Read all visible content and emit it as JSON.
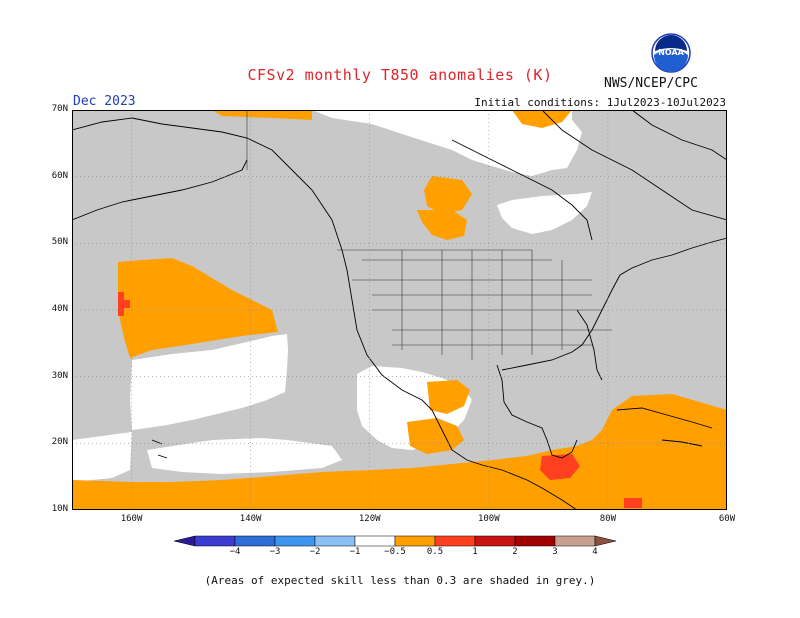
{
  "title": "CFSv2 monthly T850 anomalies (K)",
  "agency": "NWS/NCEP/CPC",
  "month": "Dec 2023",
  "initial_conditions": "Initial conditions: 1Jul2023-10Jul2023",
  "footnote": "(Areas of expected skill less than 0.3 are shaded in grey.)",
  "logo_text": "NOAA",
  "map": {
    "lat_labels": [
      "70N",
      "60N",
      "50N",
      "40N",
      "30N",
      "20N",
      "10N"
    ],
    "lon_labels": [
      "160W",
      "140W",
      "120W",
      "100W",
      "80W",
      "60W"
    ],
    "lon_range": [
      -170,
      -60
    ],
    "lat_range": [
      10,
      70
    ],
    "colors": {
      "grey_low_skill": "#c8c8c8",
      "warm_0_5_to_1": "#ff9f00",
      "warm_1_to_2": "#ff4020",
      "ocean_bg": "#ffffff",
      "coast": "#000000"
    }
  },
  "colorbar": {
    "labels": [
      "−4",
      "−3",
      "−2",
      "−1",
      "−0.5",
      "0.5",
      "1",
      "2",
      "3",
      "4"
    ],
    "colors": [
      "#2a1a9a",
      "#3c3cd0",
      "#2e6cd8",
      "#3c96f0",
      "#8cc0f4",
      "#ffffff",
      "#ff9f00",
      "#ff4020",
      "#c81414",
      "#a00000",
      "#c8a090",
      "#8a5040"
    ]
  }
}
